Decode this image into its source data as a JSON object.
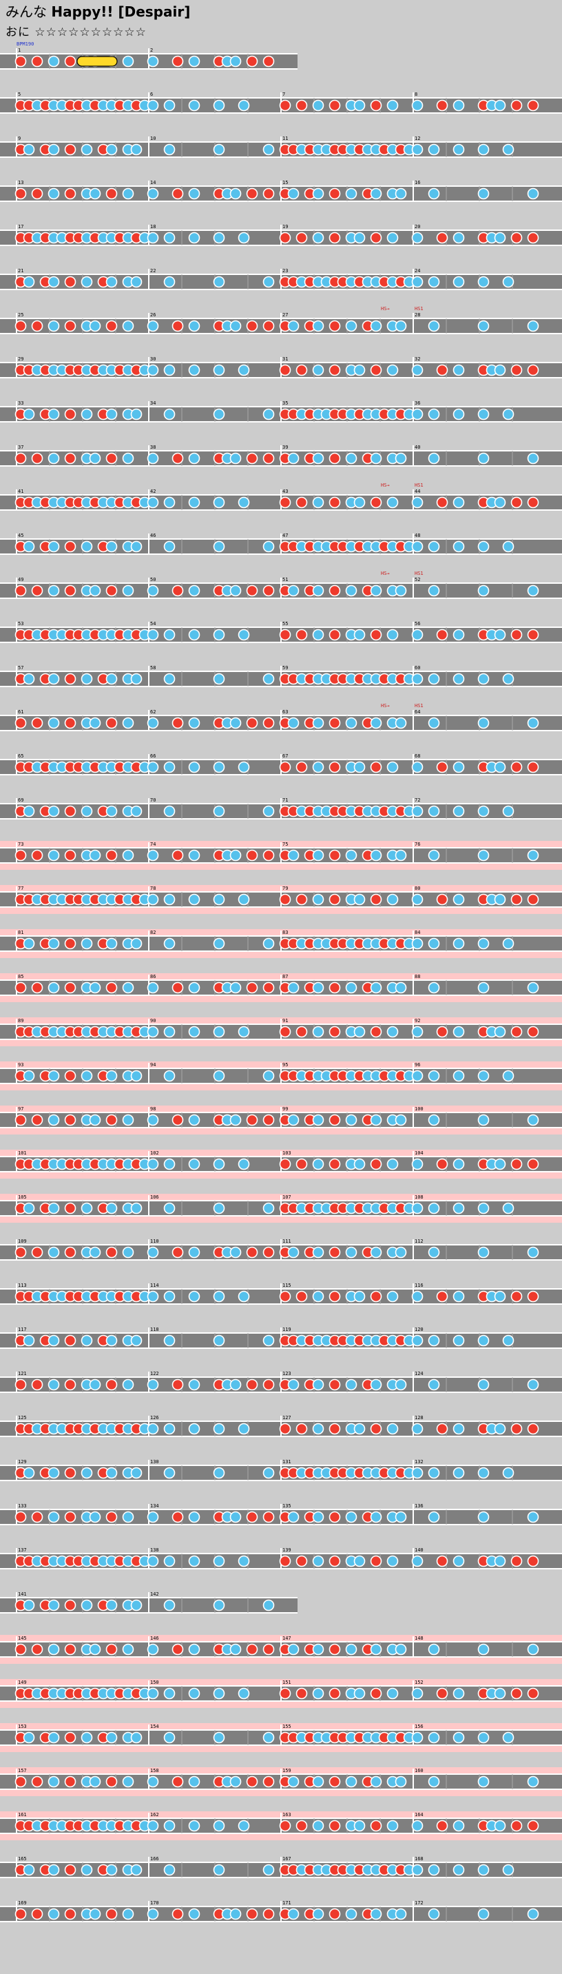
{
  "song": {
    "title_left": "みんな",
    "title_right": "Happy!! [Despair]",
    "difficulty_label": "おに",
    "stars": "☆☆☆☆☆☆☆☆☆☆"
  },
  "annotations": {
    "bpm_label": "BPM190",
    "tempo_change": "HS→",
    "hs_value": "HS1"
  },
  "colors": {
    "background": "#cccccc",
    "lane": "#7f7f7f",
    "don": "#ee3a2c",
    "ka": "#56c1ec",
    "roll": "#ffd92a",
    "gogo_band": "#ffc8c8"
  },
  "measures": [
    {
      "n": 1
    },
    {
      "n": 2
    },
    {
      "n": 3
    },
    {
      "n": 4
    },
    {
      "n": 5
    },
    {
      "n": 6
    },
    {
      "n": 7
    },
    {
      "n": 8
    },
    {
      "n": 9
    },
    {
      "n": 10
    },
    {
      "n": 11
    },
    {
      "n": 12
    },
    {
      "n": 13
    },
    {
      "n": 14
    },
    {
      "n": 15
    },
    {
      "n": 16
    },
    {
      "n": 17
    },
    {
      "n": 18
    },
    {
      "n": 19
    },
    {
      "n": 20
    }
  ]
}
